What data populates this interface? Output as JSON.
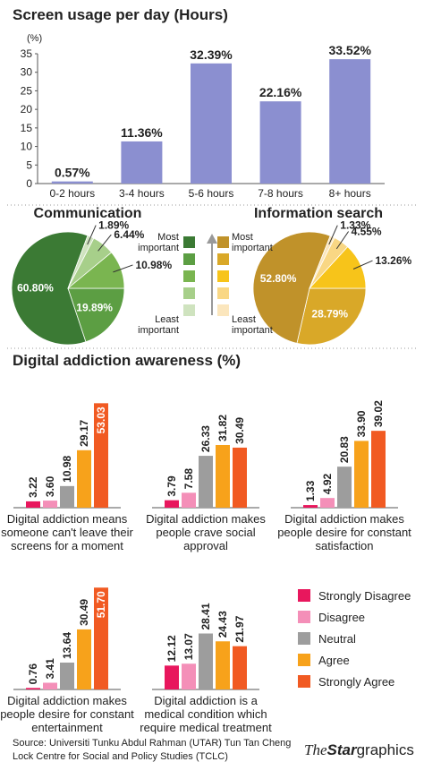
{
  "chart_data": [
    {
      "type": "bar",
      "title": "Screen usage per day (Hours)",
      "y_label": "(%)",
      "categories": [
        "0-2 hours",
        "3-4 hours",
        "5-6 hours",
        "7-8 hours",
        "8+ hours"
      ],
      "values": [
        0.57,
        11.36,
        32.39,
        22.16,
        33.52
      ],
      "value_labels": [
        "0.57%",
        "11.36%",
        "32.39%",
        "22.16%",
        "33.52%"
      ],
      "color": "#8b8fd0",
      "ylim": [
        0,
        35
      ],
      "yticks": [
        0,
        5,
        10,
        15,
        20,
        25,
        30,
        35
      ]
    },
    {
      "type": "pie",
      "title": "Communication",
      "categories": [
        null,
        null,
        null,
        null,
        null
      ],
      "values": [
        60.8,
        19.89,
        10.98,
        6.44,
        1.89
      ],
      "value_labels": [
        "60.80%",
        "19.89%",
        "10.98%",
        "6.44%",
        "1.89%"
      ],
      "colors": [
        "#3b7a34",
        "#5c9e43",
        "#7ab550",
        "#a7cf8a",
        "#cfe3bf"
      ],
      "legend": [
        "Most important",
        "Least important"
      ]
    },
    {
      "type": "pie",
      "title": "Information search",
      "categories": [
        null,
        null,
        null,
        null,
        null
      ],
      "values": [
        52.8,
        28.79,
        13.26,
        4.55,
        1.33
      ],
      "value_labels": [
        "52.80%",
        "28.79%",
        "13.26%",
        "4.55%",
        "1.33%"
      ],
      "colors": [
        "#c0922a",
        "#d9a828",
        "#f7c41a",
        "#f9d784",
        "#fbe6bd"
      ],
      "legend": [
        "Most important",
        "Least important"
      ]
    },
    {
      "type": "grouped_bar",
      "title": "Digital addiction awareness (%)",
      "categories": [
        "Digital addiction means someone can't leave their screens for a moment",
        "Digital addiction makes people crave social approval",
        "Digital addiction makes people desire for constant satisfaction",
        "Digital addiction makes people desire for constant entertainment",
        "Digital addiction is a medical condition which require medical treatment"
      ],
      "series": [
        {
          "name": "Strongly Disagree",
          "color": "#e8175d",
          "values": [
            3.22,
            3.79,
            1.33,
            0.76,
            12.12
          ],
          "value_labels": [
            "3.22",
            "3.79",
            "1.33",
            "0.76",
            "12.12"
          ]
        },
        {
          "name": "Disagree",
          "color": "#f48fb8",
          "values": [
            3.6,
            7.58,
            4.92,
            3.41,
            13.07
          ],
          "value_labels": [
            "3.60",
            "7.58",
            "4.92",
            "3.41",
            "13.07"
          ]
        },
        {
          "name": "Neutral",
          "color": "#9d9d9d",
          "values": [
            10.98,
            26.33,
            20.83,
            13.64,
            28.41
          ],
          "value_labels": [
            "10.98",
            "26.33",
            "20.83",
            "13.64",
            "28.41"
          ]
        },
        {
          "name": "Agree",
          "color": "#f7a21b",
          "values": [
            29.17,
            31.82,
            33.9,
            30.49,
            24.43
          ],
          "value_labels": [
            "29.17",
            "31.82",
            "33.90",
            "30.49",
            "24.43"
          ]
        },
        {
          "name": "Strongly Agree",
          "color": "#f15a22",
          "values": [
            53.03,
            30.49,
            39.02,
            51.7,
            21.97
          ],
          "value_labels": [
            "53.03",
            "30.49",
            "39.02",
            "51.70",
            "21.97"
          ]
        }
      ]
    }
  ],
  "footer": {
    "source": "Source: Universiti Tunku Abdul Rahman (UTAR) Tun Tan Cheng Lock Centre for Social and Policy Studies (TCLC)",
    "logo_the": "The",
    "logo_star": "Star",
    "logo_graphics": "graphics"
  }
}
